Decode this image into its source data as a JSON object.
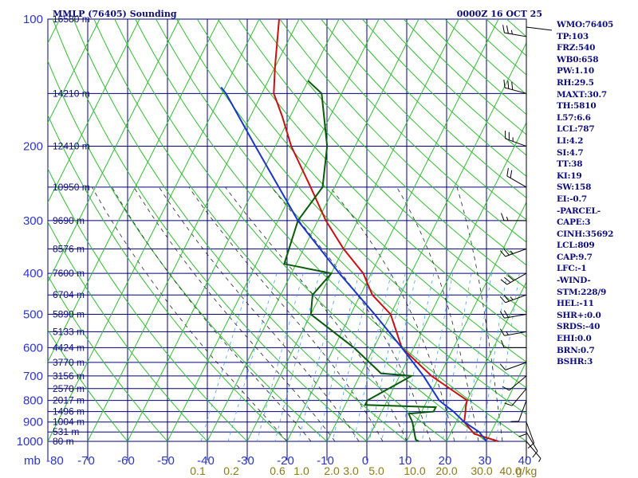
{
  "title_left": "MMLP (76405) Sounding",
  "title_right": "0000Z 16 OCT 25",
  "colors": {
    "grid": "#000080",
    "dry_adiabat": "#33bb33",
    "moist_adiabat": "#222222",
    "mixing_ratio": "#44a0ff",
    "temperature": "#c81010",
    "dewpoint": "#0a5a0a",
    "parcel": "#1a36c8",
    "text": "#0d0d7a"
  },
  "chart_data": {
    "type": "line",
    "chart_kind": "skew-T log-P sounding",
    "pressure_axis": {
      "label": "mb",
      "ticks": [
        100,
        200,
        300,
        400,
        500,
        600,
        700,
        800,
        900,
        1000
      ],
      "range": [
        100,
        1000
      ],
      "scale": "log"
    },
    "temperature_axis": {
      "ticks": [
        "-80",
        "-70",
        "-60",
        "-50",
        "-40",
        "-30",
        "-20",
        "-10",
        "0",
        "10",
        "20",
        "30",
        "40"
      ],
      "range": [
        -80,
        40
      ]
    },
    "height_labels": [
      {
        "p": 100,
        "text": "16580 m"
      },
      {
        "p": 150,
        "text": "14210 m"
      },
      {
        "p": 200,
        "text": "12410 m"
      },
      {
        "p": 250,
        "text": "10950 m"
      },
      {
        "p": 300,
        "text": "9690 m"
      },
      {
        "p": 350,
        "text": "8576 m"
      },
      {
        "p": 400,
        "text": "7600 m"
      },
      {
        "p": 450,
        "text": "6704 m"
      },
      {
        "p": 500,
        "text": "5890 m"
      },
      {
        "p": 550,
        "text": "5133 m"
      },
      {
        "p": 600,
        "text": "4424 m"
      },
      {
        "p": 650,
        "text": "3770 m"
      },
      {
        "p": 700,
        "text": "3156 m"
      },
      {
        "p": 750,
        "text": "2570 m"
      },
      {
        "p": 800,
        "text": "2017 m"
      },
      {
        "p": 850,
        "text": "1496 m"
      },
      {
        "p": 900,
        "text": "1004 m"
      },
      {
        "p": 950,
        "text": "531 m"
      },
      {
        "p": 1000,
        "text": "80 m"
      }
    ],
    "mixing_ratio_labels": [
      "0.1",
      "0.2",
      "0.6",
      "1.0",
      "2.0",
      "3.0",
      "5.0",
      "10.0",
      "20.0",
      "30.0",
      "40.0"
    ],
    "mixing_ratio_unit": "g/kg",
    "series": [
      {
        "key": "temperature",
        "points": [
          [
            1000,
            33
          ],
          [
            960,
            26
          ],
          [
            900,
            22
          ],
          [
            850,
            21
          ],
          [
            830,
            20.5
          ],
          [
            800,
            20
          ],
          [
            700,
            8
          ],
          [
            600,
            -3
          ],
          [
            500,
            -10
          ],
          [
            450,
            -17
          ],
          [
            400,
            -22
          ],
          [
            350,
            -30
          ],
          [
            300,
            -38
          ],
          [
            250,
            -46
          ],
          [
            200,
            -56
          ],
          [
            170,
            -62
          ],
          [
            150,
            -67
          ],
          [
            130,
            -70
          ],
          [
            100,
            -75
          ]
        ]
      },
      {
        "key": "dewpoint",
        "points": [
          [
            1000,
            13
          ],
          [
            990,
            12
          ],
          [
            900,
            9
          ],
          [
            860,
            7
          ],
          [
            850,
            13
          ],
          [
            830,
            13
          ],
          [
            820,
            -5
          ],
          [
            800,
            -5
          ],
          [
            700,
            3
          ],
          [
            690,
            -5
          ],
          [
            600,
            -15
          ],
          [
            500,
            -30
          ],
          [
            450,
            -32
          ],
          [
            400,
            -30
          ],
          [
            380,
            -43
          ],
          [
            300,
            -45
          ],
          [
            250,
            -43
          ],
          [
            200,
            -47
          ],
          [
            150,
            -55
          ],
          [
            140,
            -60
          ]
        ]
      },
      {
        "key": "parcel",
        "points": [
          [
            1000,
            30
          ],
          [
            950,
            27
          ],
          [
            900,
            22
          ],
          [
            850,
            18
          ],
          [
            820,
            15
          ],
          [
            800,
            13
          ],
          [
            700,
            6
          ],
          [
            600,
            -3
          ],
          [
            500,
            -14
          ],
          [
            400,
            -28
          ],
          [
            300,
            -45
          ],
          [
            200,
            -65
          ],
          [
            150,
            -79
          ],
          [
            145,
            -81
          ]
        ]
      }
    ],
    "wind_barbs": [
      {
        "p": 110,
        "dir": 280,
        "kt": 25
      },
      {
        "p": 150,
        "dir": 285,
        "kt": 30
      },
      {
        "p": 200,
        "dir": 290,
        "kt": 25
      },
      {
        "p": 250,
        "dir": 300,
        "kt": 20
      },
      {
        "p": 300,
        "dir": 270,
        "kt": 15
      },
      {
        "p": 350,
        "dir": 250,
        "kt": 25
      },
      {
        "p": 400,
        "dir": 240,
        "kt": 30
      },
      {
        "p": 450,
        "dir": 250,
        "kt": 25
      },
      {
        "p": 500,
        "dir": 260,
        "kt": 20
      },
      {
        "p": 550,
        "dir": 260,
        "kt": 15
      },
      {
        "p": 600,
        "dir": 270,
        "kt": 10
      },
      {
        "p": 650,
        "dir": 250,
        "kt": 10
      },
      {
        "p": 700,
        "dir": 230,
        "kt": 10
      },
      {
        "p": 750,
        "dir": 220,
        "kt": 10
      },
      {
        "p": 800,
        "dir": 200,
        "kt": 10
      },
      {
        "p": 850,
        "dir": 180,
        "kt": 10
      },
      {
        "p": 900,
        "dir": 160,
        "kt": 10
      },
      {
        "p": 950,
        "dir": 150,
        "kt": 10
      },
      {
        "p": 1000,
        "dir": 140,
        "kt": 5
      }
    ]
  },
  "indices": [
    "WMO:76405",
    "TP:103",
    "FRZ:540",
    "WB0:658",
    "PW:1.10",
    "RH:29.5",
    "MAXT:30.7",
    "TH:5810",
    "L57:6.6",
    "LCL:787",
    "LI:4.2",
    "SI:4.7",
    "TT:38",
    "KI:19",
    "SW:158",
    "EI:-0.7",
    "-PARCEL-",
    "CAPE:3",
    "CINH:35692",
    "LCL:809",
    "CAP:9.7",
    "LFC:-1",
    "-WIND-",
    "STM:228/9",
    "HEL:-11",
    "SHR+:0.0",
    "SRDS:-40",
    "EHI:0.0",
    "BRN:0.7",
    "BSHR:3"
  ]
}
